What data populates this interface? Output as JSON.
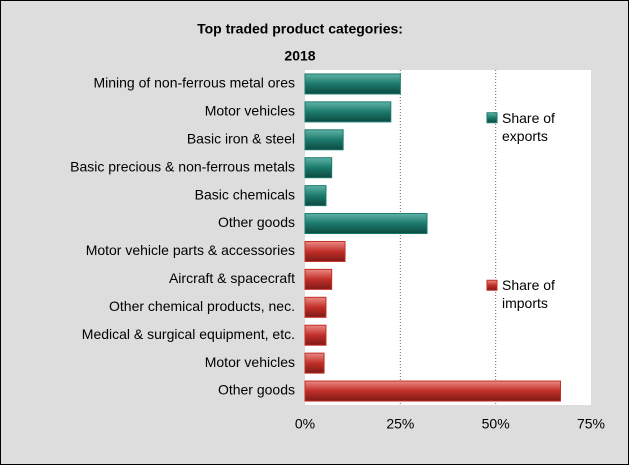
{
  "chart_data": {
    "type": "hbar",
    "title": "Top traded product categories:",
    "subtitle": "2018",
    "categories": [
      "Mining of non-ferrous metal ores",
      "Motor vehicles",
      "Basic iron & steel",
      "Basic precious & non-ferrous metals",
      "Basic chemicals",
      "Other goods",
      "Motor vehicle parts & accessories",
      "Aircraft & spacecraft",
      "Other chemical products, nec.",
      "Medical & surgical equipment, etc.",
      "Motor vehicles",
      "Other goods"
    ],
    "series": [
      {
        "name": "Share of exports",
        "color": "#1b7a6c",
        "values": [
          25,
          22.5,
          10,
          7,
          5.5,
          32,
          null,
          null,
          null,
          null,
          null,
          null
        ]
      },
      {
        "name": "Share of imports",
        "color": "#c22f29",
        "values": [
          null,
          null,
          null,
          null,
          null,
          null,
          10.5,
          7,
          5.5,
          5.5,
          5,
          67
        ]
      }
    ],
    "xlim": [
      0,
      75
    ],
    "xticks": [
      {
        "value": 0,
        "label": "0%"
      },
      {
        "value": 25,
        "label": "25%"
      },
      {
        "value": 50,
        "label": "50%"
      },
      {
        "value": 75,
        "label": "75%"
      }
    ],
    "grid": true
  }
}
